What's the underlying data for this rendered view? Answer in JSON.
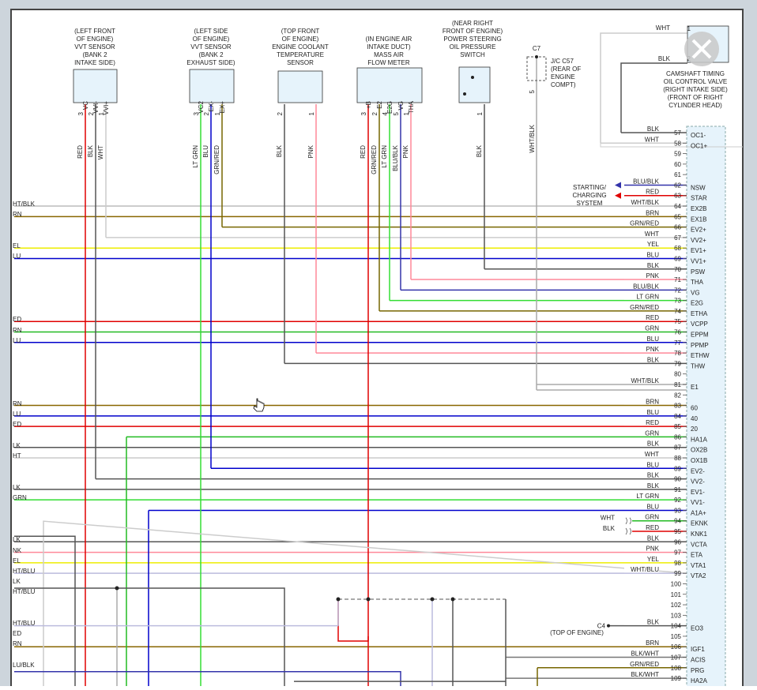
{
  "components": [
    {
      "lines": [
        "(LEFT FRONT",
        "OF ENGINE)",
        "VVT SENSOR",
        "(BANK 2",
        "INTAKE SIDE)"
      ],
      "pins": [
        {
          "name": "VC",
          "num": "3",
          "wire": "RED",
          "color": "#e00000"
        },
        {
          "name": "VVI-",
          "num": "2",
          "wire": "BLK",
          "color": "#555555"
        },
        {
          "name": "VVI+",
          "num": "1",
          "wire": "WHT",
          "color": "#cccccc"
        }
      ]
    },
    {
      "lines": [
        "(LEFT SIDE",
        "OF ENGINE)",
        "VVT SENSOR",
        "(BANK 2",
        "EXHAUST SIDE)"
      ],
      "pins": [
        {
          "name": "VC2",
          "num": "3",
          "wire": "LT GRN",
          "color": "#33dd33"
        },
        {
          "name": "EX-",
          "num": "2",
          "wire": "BLU",
          "color": "#0000cc"
        },
        {
          "name": "EX+",
          "num": "1",
          "wire": "GRN/RED",
          "color": "#776600"
        }
      ]
    },
    {
      "lines": [
        "(TOP FRONT",
        "OF ENGINE)",
        "ENGINE COOLANT",
        "TEMPERATURE",
        "SENSOR"
      ],
      "pins": [
        {
          "num": "2",
          "wire": "BLK",
          "color": "#555555"
        },
        {
          "num": "1",
          "wire": "PNK",
          "color": "#ff8899"
        }
      ]
    },
    {
      "lines": [
        "(IN ENGINE AIR",
        "INTAKE DUCT)",
        "MASS AIR",
        "FLOW METER"
      ],
      "pins": [
        {
          "name": "+B",
          "num": "3",
          "wire": "RED",
          "color": "#e00000"
        },
        {
          "name": "E2",
          "num": "2",
          "wire": "GRN/RED",
          "color": "#776600"
        },
        {
          "name": "E2G",
          "num": "4",
          "wire": "LT GRN",
          "color": "#33dd33"
        },
        {
          "name": "VG",
          "num": "5",
          "wire": "BLU/BLK",
          "color": "#3333aa"
        },
        {
          "name": "THA",
          "num": "1",
          "wire": "PNK",
          "color": "#ff8899"
        }
      ]
    },
    {
      "lines": [
        "(NEAR RIGHT",
        "FRONT OF ENGINE)",
        "POWER STEERING",
        "OIL PRESSURE",
        "SWITCH"
      ],
      "pins": [
        {
          "num": "1",
          "wire": "BLK",
          "color": "#555555"
        }
      ]
    },
    {
      "lines": [
        "C7",
        "J/C C57",
        "(REAR OF",
        "ENGINE",
        "COMPT)"
      ],
      "pins": [
        {
          "num": "5",
          "wire": "WHT/BLK",
          "color": "#aaaaaa"
        }
      ]
    },
    {
      "lines": [
        "CAMSHAFT TIMING",
        "OIL CONTROL VALVE",
        "(RIGHT INTAKE SIDE)",
        "(FRONT OF RIGHT",
        "CYLINDER HEAD)"
      ],
      "pins": [
        {
          "num": "1",
          "wire": "WHT",
          "color": "#cccccc"
        },
        {
          "num": "2",
          "wire": "BLK",
          "color": "#555555"
        }
      ]
    }
  ],
  "connector": {
    "rows": [
      {
        "pin": "57",
        "wire": "BLK",
        "name": "OC1-",
        "color": "#555555"
      },
      {
        "pin": "58",
        "wire": "WHT",
        "name": "OC1+",
        "color": "#cccccc"
      },
      {
        "pin": "59"
      },
      {
        "pin": "60"
      },
      {
        "pin": "61"
      },
      {
        "pin": "62",
        "wire": "BLU/BLK",
        "name": "NSW",
        "color": "#3333aa"
      },
      {
        "pin": "63",
        "wire": "RED",
        "name": "STAR",
        "color": "#e00000"
      },
      {
        "pin": "64",
        "wire": "WHT/BLK",
        "name": "EX2B",
        "color": "#bbbbbb"
      },
      {
        "pin": "65",
        "wire": "BRN",
        "name": "EX1B",
        "color": "#886600"
      },
      {
        "pin": "66",
        "wire": "GRN/RED",
        "name": "EV2+",
        "color": "#776600"
      },
      {
        "pin": "67",
        "wire": "WHT",
        "name": "VV2+",
        "color": "#cccccc"
      },
      {
        "pin": "68",
        "wire": "YEL",
        "name": "EV1+",
        "color": "#eeee00"
      },
      {
        "pin": "69",
        "wire": "BLU",
        "name": "VV1+",
        "color": "#0000cc"
      },
      {
        "pin": "70",
        "wire": "BLK",
        "name": "PSW",
        "color": "#555555"
      },
      {
        "pin": "71",
        "wire": "PNK",
        "name": "THA",
        "color": "#ff8899"
      },
      {
        "pin": "72",
        "wire": "BLU/BLK",
        "name": "VG",
        "color": "#3333aa"
      },
      {
        "pin": "73",
        "wire": "LT GRN",
        "name": "E2G",
        "color": "#33dd33"
      },
      {
        "pin": "74",
        "wire": "GRN/RED",
        "name": "ETHA",
        "color": "#776600"
      },
      {
        "pin": "75",
        "wire": "RED",
        "name": "VCPP",
        "color": "#e00000"
      },
      {
        "pin": "76",
        "wire": "GRN",
        "name": "EPPM",
        "color": "#22bb22"
      },
      {
        "pin": "77",
        "wire": "BLU",
        "name": "PPMP",
        "color": "#0000cc"
      },
      {
        "pin": "78",
        "wire": "PNK",
        "name": "ETHW",
        "color": "#ff8899"
      },
      {
        "pin": "79",
        "wire": "BLK",
        "name": "THW",
        "color": "#555555"
      },
      {
        "pin": "80"
      },
      {
        "pin": "81",
        "wire": "WHT/BLK",
        "name": "E1",
        "color": "#aaaaaa"
      },
      {
        "pin": "82"
      },
      {
        "pin": "83",
        "wire": "BRN",
        "name": "60",
        "color": "#886600"
      },
      {
        "pin": "84",
        "wire": "BLU",
        "name": "40",
        "color": "#0000cc"
      },
      {
        "pin": "85",
        "wire": "RED",
        "name": "20",
        "color": "#e00000"
      },
      {
        "pin": "86",
        "wire": "GRN",
        "name": "HA1A",
        "color": "#22bb22"
      },
      {
        "pin": "87",
        "wire": "BLK",
        "name": "OX2B",
        "color": "#555555"
      },
      {
        "pin": "88",
        "wire": "WHT",
        "name": "OX1B",
        "color": "#cccccc"
      },
      {
        "pin": "89",
        "wire": "BLU",
        "name": "EV2-",
        "color": "#0000cc"
      },
      {
        "pin": "90",
        "wire": "BLK",
        "name": "VV2-",
        "color": "#555555"
      },
      {
        "pin": "91",
        "wire": "BLK",
        "name": "EV1-",
        "color": "#555555"
      },
      {
        "pin": "92",
        "wire": "LT GRN",
        "name": "VV1-",
        "color": "#33dd33"
      },
      {
        "pin": "93",
        "wire": "BLU",
        "name": "A1A+",
        "color": "#0000cc"
      },
      {
        "pin": "94",
        "wire": "GRN",
        "name": "EKNK",
        "color": "#22bb22"
      },
      {
        "pin": "95",
        "wire": "RED",
        "name": "KNK1",
        "color": "#e00000"
      },
      {
        "pin": "96",
        "wire": "BLK",
        "name": "VCTA",
        "color": "#555555"
      },
      {
        "pin": "97",
        "wire": "PNK",
        "name": "ETA",
        "color": "#ff8899"
      },
      {
        "pin": "98",
        "wire": "YEL",
        "name": "VTA1",
        "color": "#eeee00"
      },
      {
        "pin": "99",
        "wire": "WHT/BLU",
        "name": "VTA2",
        "color": "#bbbbdd"
      },
      {
        "pin": "100"
      },
      {
        "pin": "101"
      },
      {
        "pin": "102"
      },
      {
        "pin": "103"
      },
      {
        "pin": "104",
        "wire": "BLK",
        "name": "EO3",
        "color": "#555555"
      },
      {
        "pin": "105"
      },
      {
        "pin": "106",
        "wire": "BRN",
        "name": "IGF1",
        "color": "#886600"
      },
      {
        "pin": "107",
        "wire": "BLK/WHT",
        "name": "ACIS",
        "color": "#777777"
      },
      {
        "pin": "108",
        "wire": "GRN/RED",
        "name": "PRG",
        "color": "#776600"
      },
      {
        "pin": "109",
        "wire": "BLK/WHT",
        "name": "HA2A",
        "color": "#777777"
      }
    ]
  },
  "starting_system": [
    "STARTING/",
    "CHARGING",
    "SYSTEM"
  ],
  "knock_shield": [
    "WHT",
    "BLK"
  ],
  "c4": {
    "label": "C4",
    "location": "(TOP OF ENGINE)"
  },
  "left_labels": [
    "HT/BLK",
    "RN",
    "EL",
    "LU",
    "ED",
    "RN",
    "LU",
    "RN",
    "LU",
    "ED",
    "LK",
    "HT",
    "LK",
    " GRN",
    "LK",
    "NK",
    "EL",
    "HT/BLU",
    "LK",
    "HT/BLU",
    "HT/BLU",
    "ED",
    "RN",
    "LU/BLK"
  ]
}
